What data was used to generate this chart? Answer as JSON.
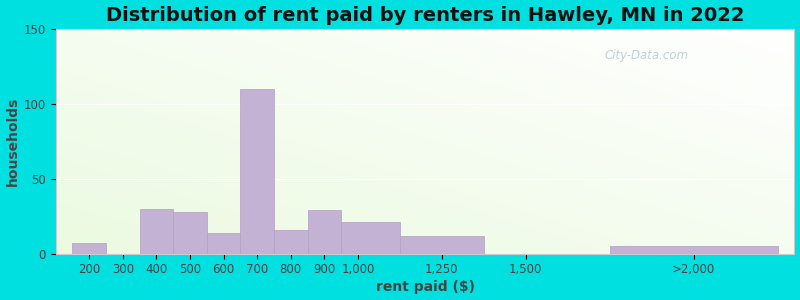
{
  "title": "Distribution of rent paid by renters in Hawley, MN in 2022",
  "xlabel": "rent paid ($)",
  "ylabel": "households",
  "tick_labels": [
    "200",
    "300",
    "400",
    "500",
    "600",
    "700",
    "800",
    "900",
    "1,000",
    "1,250",
    "1,500",
    ">2,000"
  ],
  "tick_positions": [
    200,
    300,
    400,
    500,
    600,
    700,
    800,
    900,
    1000,
    1250,
    1500,
    2000
  ],
  "bar_lefts": [
    150,
    250,
    350,
    450,
    550,
    650,
    750,
    850,
    950,
    1125,
    1375,
    1750
  ],
  "bar_widths": [
    100,
    100,
    100,
    100,
    100,
    100,
    100,
    100,
    175,
    250,
    250,
    500
  ],
  "values": [
    7,
    0,
    30,
    28,
    14,
    110,
    16,
    29,
    21,
    12,
    0,
    5
  ],
  "bar_color": "#c4b2d4",
  "bar_edge_color": "#b0a0c0",
  "ylim": [
    0,
    150
  ],
  "yticks": [
    0,
    50,
    100,
    150
  ],
  "xlim": [
    100,
    2300
  ],
  "title_fontsize": 14,
  "axis_label_fontsize": 10,
  "tick_fontsize": 8.5,
  "background_outer": "#00e0e0",
  "watermark_text": "City-Data.com",
  "watermark_color": "#b8c8d0"
}
